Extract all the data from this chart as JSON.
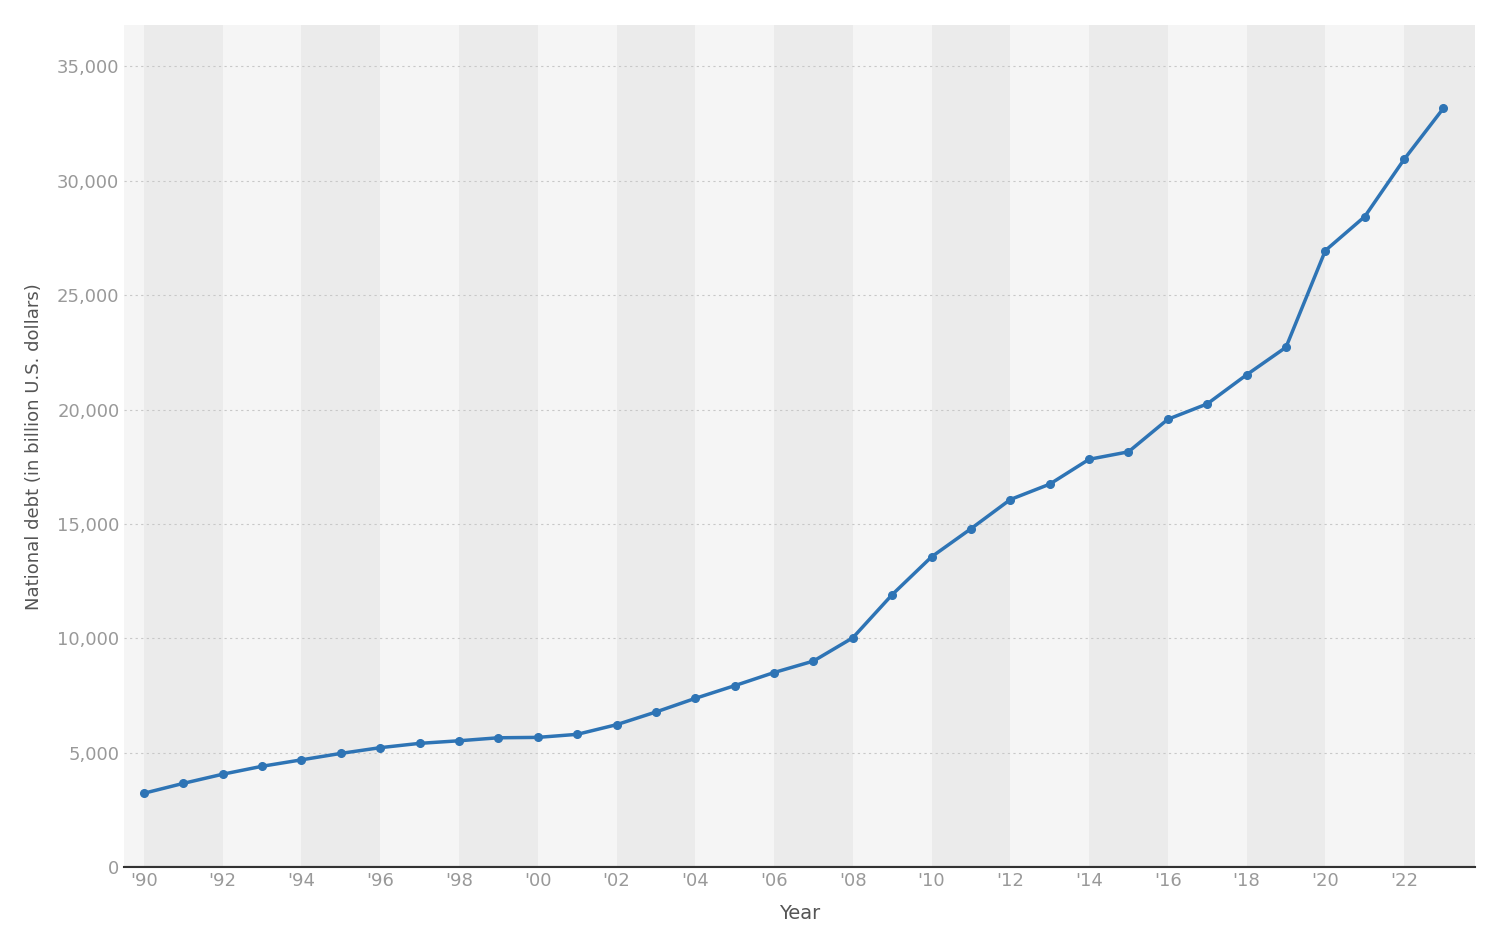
{
  "years": [
    1990,
    1991,
    1992,
    1993,
    1994,
    1995,
    1996,
    1997,
    1998,
    1999,
    2000,
    2001,
    2002,
    2003,
    2004,
    2005,
    2006,
    2007,
    2008,
    2009,
    2010,
    2011,
    2012,
    2013,
    2014,
    2015,
    2016,
    2017,
    2018,
    2019,
    2020,
    2021,
    2022,
    2023
  ],
  "values": [
    3233,
    3665,
    4065,
    4412,
    4693,
    4974,
    5225,
    5413,
    5526,
    5657,
    5674,
    5807,
    6228,
    6783,
    7379,
    7933,
    8507,
    9008,
    10025,
    11910,
    13562,
    14790,
    16066,
    16738,
    17824,
    18151,
    19573,
    20245,
    21516,
    22719,
    26945,
    28429,
    30929,
    33167
  ],
  "line_color": "#2e74b5",
  "marker_color": "#2e74b5",
  "bg_color": "#ffffff",
  "plot_bg_color": "#ffffff",
  "band_color_dark": "#ebebeb",
  "band_color_light": "#f5f5f5",
  "hgrid_color": "#c8c8c8",
  "xlabel": "Year",
  "ylabel": "National debt (in billion U.S. dollars)",
  "xtick_labels": [
    "'90",
    "'92",
    "'94",
    "'96",
    "'98",
    "'00",
    "'02",
    "'04",
    "'06",
    "'08",
    "'10",
    "'12",
    "'14",
    "'16",
    "'18",
    "'20",
    "'22"
  ],
  "xtick_positions": [
    1990,
    1992,
    1994,
    1996,
    1998,
    2000,
    2002,
    2004,
    2006,
    2008,
    2010,
    2012,
    2014,
    2016,
    2018,
    2020,
    2022
  ],
  "ytick_values": [
    0,
    5000,
    10000,
    15000,
    20000,
    25000,
    30000,
    35000
  ],
  "ylim": [
    0,
    36800
  ],
  "xlim": [
    1989.5,
    2023.8
  ],
  "tick_label_color": "#999999",
  "axis_label_color": "#555555",
  "bottom_line_color": "#333333"
}
